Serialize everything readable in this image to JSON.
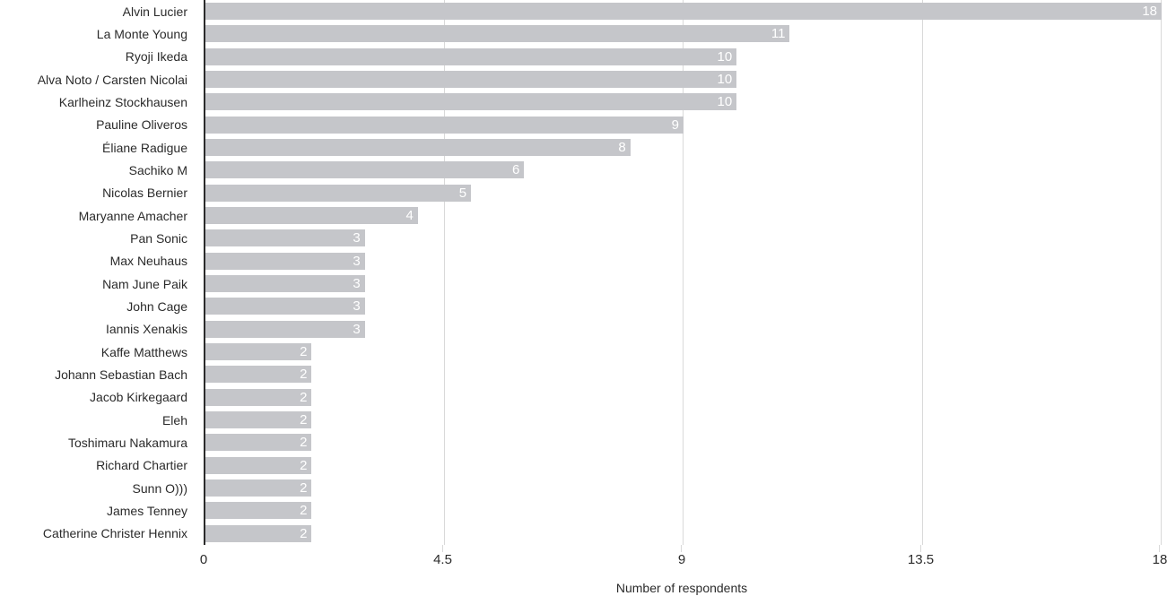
{
  "chart_data": {
    "type": "bar",
    "orientation": "horizontal",
    "xlabel": "Number of respondents",
    "xlim": [
      0,
      18
    ],
    "xticks": [
      0,
      4.5,
      9,
      13.5,
      18
    ],
    "xtick_labels": [
      "0",
      "4.5",
      "9",
      "13.5",
      "18"
    ],
    "grid": "vertical-gridlines-behind-bars",
    "legend": "none",
    "categories": [
      "Alvin Lucier",
      "La Monte Young",
      "Ryoji Ikeda",
      "Alva Noto / Carsten Nicolai",
      "Karlheinz Stockhausen",
      "Pauline Oliveros",
      "Éliane Radigue",
      "Sachiko M",
      "Nicolas Bernier",
      "Maryanne Amacher",
      "Pan Sonic",
      "Max Neuhaus",
      "Nam June Paik",
      "John Cage",
      "Iannis Xenakis",
      "Kaffe Matthews",
      "Johann Sebastian Bach",
      "Jacob Kirkegaard",
      "Eleh",
      "Toshimaru Nakamura",
      "Richard Chartier",
      "Sunn O)))",
      "James Tenney",
      "Catherine Christer Hennix"
    ],
    "values": [
      18,
      11,
      10,
      10,
      10,
      9,
      8,
      6,
      5,
      4,
      3,
      3,
      3,
      3,
      3,
      2,
      2,
      2,
      2,
      2,
      2,
      2,
      2,
      2
    ],
    "bar_value_labels": [
      "18",
      "11",
      "10",
      "10",
      "10",
      "9",
      "8",
      "6",
      "5",
      "4",
      "3",
      "3",
      "3",
      "3",
      "3",
      "2",
      "2",
      "2",
      "2",
      "2",
      "2",
      "2",
      "2",
      "2"
    ],
    "colors": {
      "bar": "#c5c6ca",
      "bar_value_label": "#ffffff",
      "gridline": "#d9d9d9",
      "axis_line": "#2b2b2b",
      "text": "#2b2b2b",
      "background": "#ffffff"
    }
  }
}
